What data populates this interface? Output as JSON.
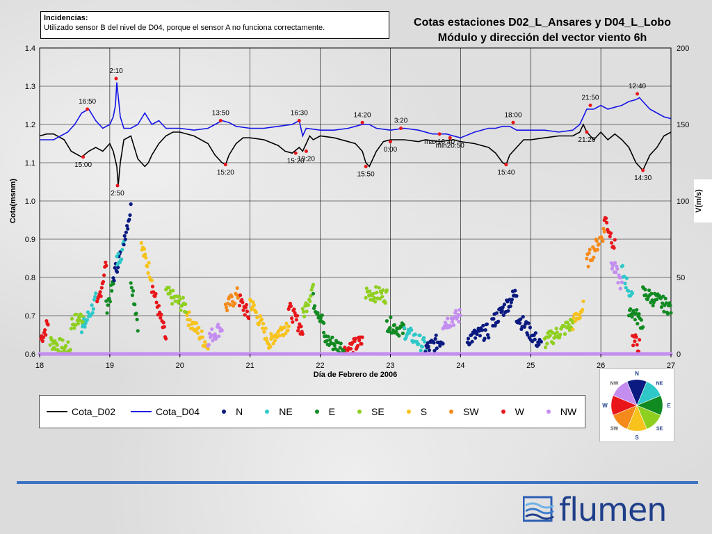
{
  "note": {
    "title": "Incidencias:",
    "text": "Utilizado sensor B del nivel de D04, porque el sensor A no funciona correctamente."
  },
  "title_line1": "Cotas estaciones D02_L_Ansares y D04_L_Lobo",
  "title_line2": "Módulo y dirección del vector viento 6h",
  "logo_text": "flumen",
  "colors": {
    "Cota_D02": "#000000",
    "Cota_D04": "#1414e6",
    "N": "#0a1a80",
    "NE": "#2ec8c8",
    "E": "#118a22",
    "SE": "#8fcf20",
    "S": "#f7c21b",
    "SW": "#f58a1a",
    "W": "#e8161a",
    "NW": "#c48ef0"
  },
  "rose": {
    "labels": [
      "N",
      "NE",
      "E",
      "SE",
      "S",
      "SW",
      "W",
      "NW"
    ],
    "colors": [
      "#0a1a80",
      "#2ec8c8",
      "#118a22",
      "#8fcf20",
      "#f7c21b",
      "#f58a1a",
      "#e8161a",
      "#c48ef0"
    ]
  },
  "chart_data": {
    "type": "line",
    "xlabel": "Día de Febrero de 2006",
    "ylabel": "Cota(msnm)",
    "y2label": "V(m/s)",
    "xlim": [
      18,
      27
    ],
    "ylim": [
      0.6,
      1.4
    ],
    "y2lim": [
      0,
      200
    ],
    "xticks": [
      "18",
      "19",
      "20",
      "21",
      "22",
      "23",
      "24",
      "25",
      "26",
      "27"
    ],
    "yticks": [
      "0.6",
      "0.7",
      "0.8",
      "0.9",
      "1.0",
      "1.1",
      "1.2",
      "1.3",
      "1.4"
    ],
    "y2ticks": [
      "0",
      "50",
      "100",
      "150",
      "200"
    ],
    "grid": true,
    "legend": {
      "position": "bottom",
      "entries": [
        "Cota_D02",
        "Cota_D04",
        "N",
        "NE",
        "E",
        "SE",
        "S",
        "SW",
        "W",
        "NW"
      ]
    },
    "series": [
      {
        "name": "Cota_D02",
        "x": [
          18,
          18.1,
          18.2,
          18.35,
          18.45,
          18.6,
          18.7,
          18.8,
          18.9,
          19.0,
          19.05,
          19.1,
          19.12,
          19.15,
          19.2,
          19.3,
          19.4,
          19.5,
          19.55,
          19.6,
          19.7,
          19.8,
          19.9,
          20.0,
          20.2,
          20.4,
          20.5,
          20.6,
          20.65,
          20.7,
          20.8,
          20.9,
          21.0,
          21.2,
          21.4,
          21.5,
          21.6,
          21.7,
          21.75,
          21.8,
          21.85,
          21.9,
          22.0,
          22.2,
          22.4,
          22.5,
          22.6,
          22.65,
          22.7,
          22.8,
          22.9,
          23.0,
          23.2,
          23.4,
          23.5,
          23.7,
          23.9,
          24.0,
          24.2,
          24.4,
          24.5,
          24.6,
          24.65,
          24.7,
          24.8,
          24.9,
          25.0,
          25.2,
          25.4,
          25.6,
          25.7,
          25.75,
          25.8,
          25.85,
          25.9,
          26.0,
          26.1,
          26.2,
          26.3,
          26.4,
          26.5,
          26.55,
          26.6,
          26.7,
          26.8,
          26.9,
          27.0
        ],
        "y": [
          1.17,
          1.175,
          1.175,
          1.16,
          1.13,
          1.115,
          1.13,
          1.14,
          1.13,
          1.15,
          1.13,
          1.09,
          1.04,
          1.1,
          1.16,
          1.17,
          1.11,
          1.09,
          1.1,
          1.12,
          1.15,
          1.17,
          1.18,
          1.18,
          1.17,
          1.15,
          1.12,
          1.1,
          1.095,
          1.12,
          1.15,
          1.165,
          1.165,
          1.16,
          1.145,
          1.13,
          1.125,
          1.14,
          1.13,
          1.15,
          1.17,
          1.16,
          1.17,
          1.165,
          1.155,
          1.15,
          1.13,
          1.1,
          1.09,
          1.13,
          1.155,
          1.16,
          1.16,
          1.155,
          1.16,
          1.155,
          1.16,
          1.155,
          1.15,
          1.14,
          1.125,
          1.1,
          1.095,
          1.12,
          1.14,
          1.16,
          1.16,
          1.165,
          1.17,
          1.17,
          1.18,
          1.2,
          1.18,
          1.17,
          1.16,
          1.18,
          1.16,
          1.175,
          1.16,
          1.14,
          1.1,
          1.09,
          1.08,
          1.12,
          1.14,
          1.17,
          1.18
        ]
      },
      {
        "name": "Cota_D04",
        "x": [
          18,
          18.2,
          18.4,
          18.5,
          18.6,
          18.7,
          18.8,
          18.9,
          19.0,
          19.05,
          19.08,
          19.1,
          19.15,
          19.2,
          19.3,
          19.4,
          19.5,
          19.6,
          19.7,
          19.8,
          19.9,
          20.0,
          20.2,
          20.4,
          20.5,
          20.6,
          20.7,
          20.8,
          21.0,
          21.2,
          21.4,
          21.6,
          21.7,
          21.75,
          21.8,
          22.0,
          22.2,
          22.4,
          22.5,
          22.6,
          22.7,
          22.8,
          23.0,
          23.2,
          23.4,
          23.6,
          23.8,
          23.9,
          24.0,
          24.2,
          24.4,
          24.5,
          24.6,
          24.7,
          24.8,
          25.0,
          25.2,
          25.4,
          25.6,
          25.7,
          25.75,
          25.8,
          25.9,
          26.0,
          26.1,
          26.2,
          26.3,
          26.4,
          26.5,
          26.55,
          26.6,
          26.7,
          26.8,
          26.9,
          27.0
        ],
        "y": [
          1.16,
          1.16,
          1.18,
          1.2,
          1.23,
          1.24,
          1.21,
          1.19,
          1.2,
          1.22,
          1.25,
          1.31,
          1.22,
          1.19,
          1.19,
          1.2,
          1.23,
          1.2,
          1.21,
          1.19,
          1.19,
          1.19,
          1.185,
          1.19,
          1.2,
          1.21,
          1.205,
          1.195,
          1.19,
          1.19,
          1.195,
          1.2,
          1.21,
          1.17,
          1.19,
          1.185,
          1.185,
          1.19,
          1.195,
          1.2,
          1.2,
          1.19,
          1.185,
          1.19,
          1.185,
          1.175,
          1.175,
          1.17,
          1.165,
          1.18,
          1.19,
          1.19,
          1.195,
          1.195,
          1.185,
          1.185,
          1.185,
          1.18,
          1.185,
          1.2,
          1.22,
          1.24,
          1.24,
          1.25,
          1.24,
          1.245,
          1.25,
          1.26,
          1.265,
          1.27,
          1.26,
          1.24,
          1.23,
          1.22,
          1.215
        ]
      }
    ],
    "annotations": [
      {
        "text": "16:50",
        "x": 18.68,
        "y": 1.24
      },
      {
        "text": "15:00",
        "x": 18.62,
        "y": 1.115
      },
      {
        "text": "2:10",
        "x": 19.09,
        "y": 1.32
      },
      {
        "text": "2:50",
        "x": 19.11,
        "y": 1.04
      },
      {
        "text": "13:50",
        "x": 20.58,
        "y": 1.21
      },
      {
        "text": "15:20",
        "x": 20.65,
        "y": 1.095
      },
      {
        "text": "16:30",
        "x": 21.7,
        "y": 1.21
      },
      {
        "text": "15:20",
        "x": 21.65,
        "y": 1.125
      },
      {
        "text": "19:20",
        "x": 21.8,
        "y": 1.13
      },
      {
        "text": "14:20",
        "x": 22.6,
        "y": 1.205
      },
      {
        "text": "15:50",
        "x": 22.65,
        "y": 1.09
      },
      {
        "text": "3:20",
        "x": 23.15,
        "y": 1.19
      },
      {
        "text": "0:00",
        "x": 23.0,
        "y": 1.155
      },
      {
        "text": "max16:40",
        "x": 23.7,
        "y": 1.175
      },
      {
        "text": "min20:50",
        "x": 23.85,
        "y": 1.165
      },
      {
        "text": "18:00",
        "x": 24.75,
        "y": 1.205
      },
      {
        "text": "15:40",
        "x": 24.65,
        "y": 1.095
      },
      {
        "text": "21:50",
        "x": 25.85,
        "y": 1.25
      },
      {
        "text": "21:20",
        "x": 25.8,
        "y": 1.18
      },
      {
        "text": "12:40",
        "x": 26.52,
        "y": 1.28
      },
      {
        "text": "14:30",
        "x": 26.6,
        "y": 1.08
      }
    ],
    "wind_segments": [
      {
        "dir": "W",
        "x0": 18.02,
        "x1": 18.12,
        "v0": 10,
        "v1": 20
      },
      {
        "dir": "SE",
        "x0": 18.15,
        "x1": 18.45,
        "v0": 8,
        "v1": 2
      },
      {
        "dir": "SE",
        "x0": 18.45,
        "x1": 18.65,
        "v0": 20,
        "v1": 25
      },
      {
        "dir": "NE",
        "x0": 18.6,
        "x1": 18.8,
        "v0": 15,
        "v1": 35
      },
      {
        "dir": "W",
        "x0": 18.82,
        "x1": 18.95,
        "v0": 30,
        "v1": 60
      },
      {
        "dir": "E",
        "x0": 18.95,
        "x1": 19.05,
        "v0": 30,
        "v1": 45
      },
      {
        "dir": "N",
        "x0": 19.05,
        "x1": 19.15,
        "v0": 50,
        "v1": 65
      },
      {
        "dir": "NE",
        "x0": 19.1,
        "x1": 19.2,
        "v0": 60,
        "v1": 70
      },
      {
        "dir": "N",
        "x0": 19.2,
        "x1": 19.3,
        "v0": 75,
        "v1": 95
      },
      {
        "dir": "E",
        "x0": 19.3,
        "x1": 19.4,
        "v0": 50,
        "v1": 20
      },
      {
        "dir": "S",
        "x0": 19.45,
        "x1": 19.6,
        "v0": 70,
        "v1": 50
      },
      {
        "dir": "W",
        "x0": 19.6,
        "x1": 19.8,
        "v0": 45,
        "v1": 10
      },
      {
        "dir": "SE",
        "x0": 19.8,
        "x1": 20.1,
        "v0": 40,
        "v1": 30
      },
      {
        "dir": "S",
        "x0": 20.1,
        "x1": 20.4,
        "v0": 25,
        "v1": 5
      },
      {
        "dir": "NW",
        "x0": 20.4,
        "x1": 20.6,
        "v0": 10,
        "v1": 18
      },
      {
        "dir": "SW",
        "x0": 20.65,
        "x1": 20.85,
        "v0": 30,
        "v1": 40
      },
      {
        "dir": "W",
        "x0": 20.85,
        "x1": 20.98,
        "v0": 35,
        "v1": 25
      },
      {
        "dir": "S",
        "x0": 21.0,
        "x1": 21.3,
        "v0": 35,
        "v1": 5
      },
      {
        "dir": "S",
        "x0": 21.3,
        "x1": 21.55,
        "v0": 10,
        "v1": 20
      },
      {
        "dir": "W",
        "x0": 21.55,
        "x1": 21.75,
        "v0": 30,
        "v1": 15
      },
      {
        "dir": "SE",
        "x0": 21.75,
        "x1": 21.9,
        "v0": 25,
        "v1": 45
      },
      {
        "dir": "E",
        "x0": 21.9,
        "x1": 22.05,
        "v0": 35,
        "v1": 20
      },
      {
        "dir": "E",
        "x0": 22.05,
        "x1": 22.35,
        "v0": 10,
        "v1": 3
      },
      {
        "dir": "W",
        "x0": 22.35,
        "x1": 22.6,
        "v0": 2,
        "v1": 8
      },
      {
        "dir": "SE",
        "x0": 22.65,
        "x1": 22.95,
        "v0": 40,
        "v1": 38
      },
      {
        "dir": "E",
        "x0": 22.95,
        "x1": 23.2,
        "v0": 20,
        "v1": 15
      },
      {
        "dir": "NE",
        "x0": 23.2,
        "x1": 23.5,
        "v0": 15,
        "v1": 5
      },
      {
        "dir": "N",
        "x0": 23.5,
        "x1": 23.75,
        "v0": 3,
        "v1": 10
      },
      {
        "dir": "NW",
        "x0": 23.75,
        "x1": 24.0,
        "v0": 20,
        "v1": 25
      },
      {
        "dir": "N",
        "x0": 24.1,
        "x1": 24.4,
        "v0": 10,
        "v1": 15
      },
      {
        "dir": "N",
        "x0": 24.45,
        "x1": 24.8,
        "v0": 20,
        "v1": 40
      },
      {
        "dir": "N",
        "x0": 24.8,
        "x1": 25.15,
        "v0": 25,
        "v1": 5
      },
      {
        "dir": "SE",
        "x0": 25.2,
        "x1": 25.6,
        "v0": 8,
        "v1": 20
      },
      {
        "dir": "S",
        "x0": 25.6,
        "x1": 25.75,
        "v0": 20,
        "v1": 30
      },
      {
        "dir": "SW",
        "x0": 25.8,
        "x1": 26.05,
        "v0": 60,
        "v1": 80
      },
      {
        "dir": "W",
        "x0": 26.05,
        "x1": 26.2,
        "v0": 90,
        "v1": 70
      },
      {
        "dir": "NW",
        "x0": 26.15,
        "x1": 26.3,
        "v0": 60,
        "v1": 45
      },
      {
        "dir": "NE",
        "x0": 26.3,
        "x1": 26.45,
        "v0": 55,
        "v1": 35
      },
      {
        "dir": "E",
        "x0": 26.4,
        "x1": 26.6,
        "v0": 30,
        "v1": 20
      },
      {
        "dir": "W",
        "x0": 26.45,
        "x1": 26.55,
        "v0": 10,
        "v1": 5
      },
      {
        "dir": "E",
        "x0": 26.6,
        "x1": 27.0,
        "v0": 40,
        "v1": 30
      },
      {
        "dir": "NW",
        "x0": 18.0,
        "x1": 27.0,
        "v0": 0,
        "v1": 0
      }
    ]
  }
}
